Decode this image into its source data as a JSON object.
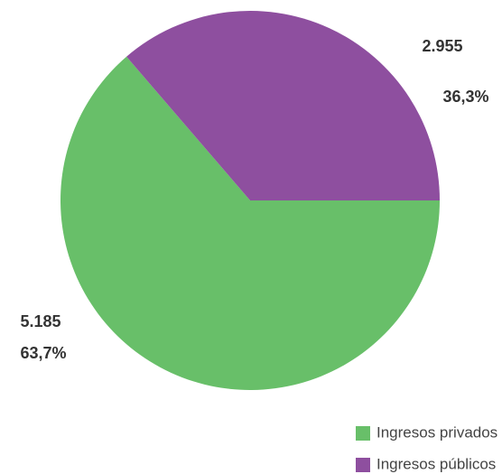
{
  "chart_data": {
    "type": "pie",
    "categories": [
      "Ingresos privados",
      "Ingresos públicos"
    ],
    "series": [
      {
        "name": "Ingresos",
        "values": [
          5185,
          2955
        ],
        "value_labels": [
          "5.185",
          "2.955"
        ]
      }
    ],
    "percentages": [
      63.7,
      36.3
    ],
    "percentage_labels": [
      "63,7%",
      "36,3%"
    ],
    "colors": [
      "#68bf69",
      "#8e4f9f"
    ]
  }
}
